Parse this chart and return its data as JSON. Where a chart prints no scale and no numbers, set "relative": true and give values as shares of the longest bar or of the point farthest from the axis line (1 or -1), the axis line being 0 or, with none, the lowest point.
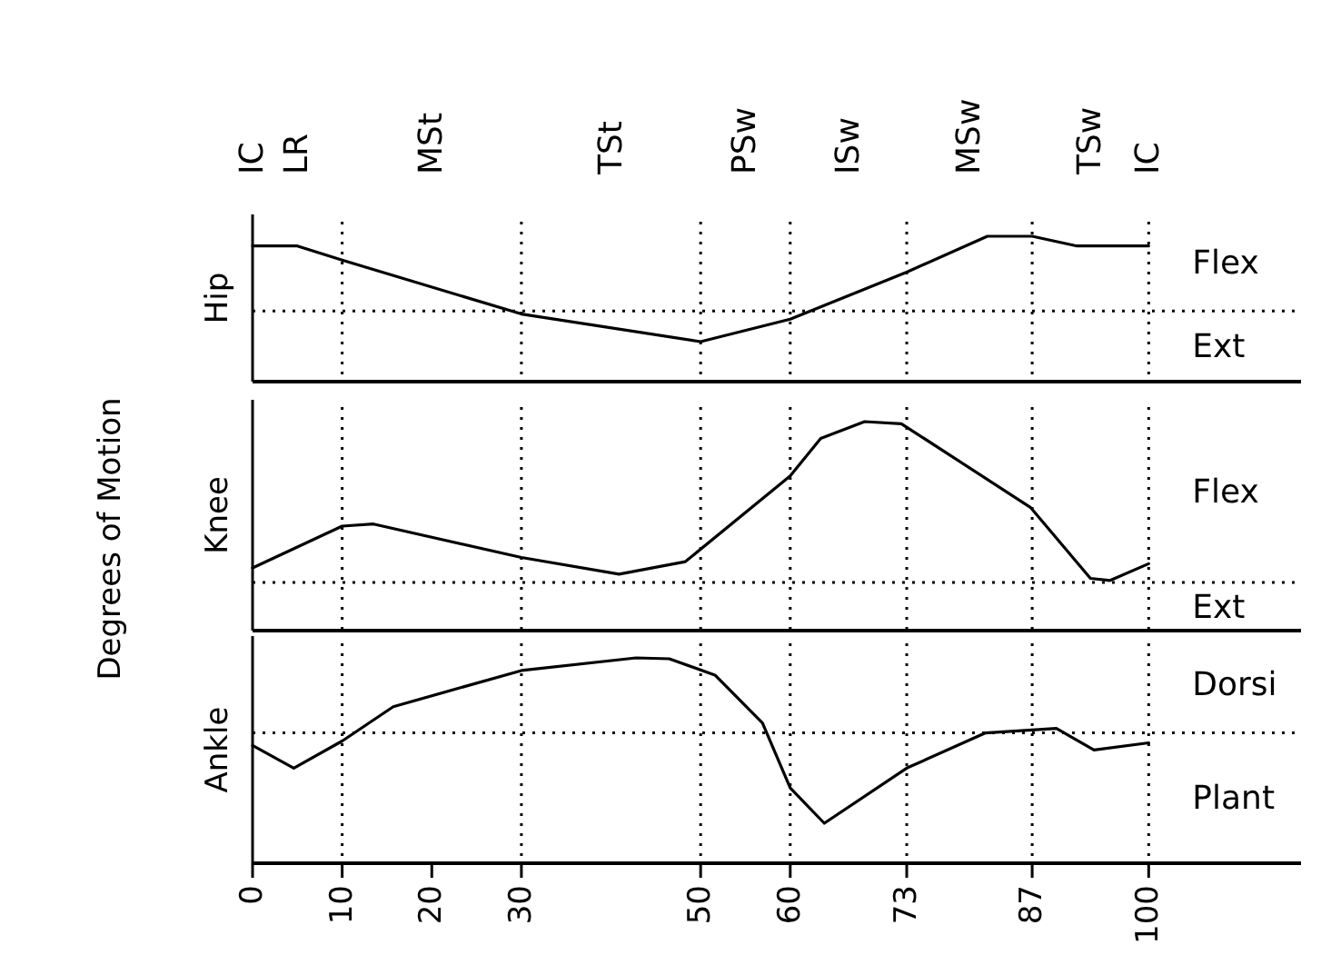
{
  "chart_data": [
    {
      "type": "line",
      "relative": true,
      "ylabel": "Hip",
      "xlim": [
        0,
        117
      ],
      "annotations": [
        "Flex",
        "Ext",
        "Degrees of Motion",
        "IC",
        "LR",
        "MSt",
        "TSt",
        "PSw",
        "ISw",
        "MSw",
        "TSw",
        "IC"
      ],
      "series": [
        {
          "color": "#000000",
          "x": [
            0,
            5,
            10,
            30,
            50,
            60,
            73,
            82,
            87,
            92,
            100
          ],
          "values": [
            0.87,
            0.87,
            0.68,
            -0.04,
            -0.41,
            -0.11,
            0.52,
            1,
            1,
            0.87,
            0.87
          ]
        }
      ],
      "ref_lines": [
        {
          "axis": "y",
          "value": 0,
          "line_style": "dotted"
        },
        {
          "axis": "x",
          "value": 10,
          "line_style": "dotted"
        },
        {
          "axis": "x",
          "value": 30,
          "line_style": "dotted"
        },
        {
          "axis": "x",
          "value": 50,
          "line_style": "dotted"
        },
        {
          "axis": "x",
          "value": 60,
          "line_style": "dotted"
        },
        {
          "axis": "x",
          "value": 73,
          "line_style": "dotted"
        },
        {
          "axis": "x",
          "value": 87,
          "line_style": "dotted"
        },
        {
          "axis": "x",
          "value": 100,
          "line_style": "dotted"
        }
      ]
    },
    {
      "type": "line",
      "relative": true,
      "ylabel": "Knee",
      "annotations": [
        "Flex",
        "Ext"
      ],
      "xlim": [
        0,
        117
      ],
      "series": [
        {
          "color": "#000000",
          "x": [
            0,
            10,
            13.5,
            30,
            40.9,
            48.3,
            60,
            63.4,
            68.3,
            72.4,
            86.8,
            93.5,
            95.7,
            100
          ],
          "values": [
            0.3,
            0.5,
            0.51,
            0.35,
            0.27,
            0.33,
            0.74,
            0.92,
            1,
            0.99,
            0.59,
            0.25,
            0.24,
            0.32
          ]
        }
      ],
      "ref_lines": [
        {
          "axis": "y",
          "value": 0.23,
          "line_style": "dotted"
        },
        {
          "axis": "x",
          "value": 10,
          "line_style": "dotted"
        },
        {
          "axis": "x",
          "value": 30,
          "line_style": "dotted"
        },
        {
          "axis": "x",
          "value": 50,
          "line_style": "dotted"
        },
        {
          "axis": "x",
          "value": 60,
          "line_style": "dotted"
        },
        {
          "axis": "x",
          "value": 73,
          "line_style": "dotted"
        },
        {
          "axis": "x",
          "value": 87,
          "line_style": "dotted"
        },
        {
          "axis": "x",
          "value": 100,
          "line_style": "dotted"
        }
      ]
    },
    {
      "type": "line",
      "relative": true,
      "ylabel": "Ankle",
      "annotations": [
        "Dorsi",
        "Plant"
      ],
      "xlim": [
        0,
        117
      ],
      "xticks": [
        0,
        10,
        20,
        30,
        50,
        60,
        73,
        87,
        100
      ],
      "series": [
        {
          "color": "#000000",
          "x": [
            0,
            4.6,
            10,
            15.7,
            30,
            42.8,
            46.5,
            51.6,
            56.9,
            60,
            63.8,
            73,
            81.8,
            89.7,
            93.9,
            100
          ],
          "values": [
            -0.14,
            -0.39,
            -0.09,
            0.29,
            0.69,
            0.83,
            0.82,
            0.64,
            0.11,
            -0.61,
            -1,
            -0.39,
            0,
            0.05,
            -0.19,
            -0.11
          ]
        }
      ],
      "ref_lines": [
        {
          "axis": "y",
          "value": 0,
          "line_style": "dotted"
        },
        {
          "axis": "x",
          "value": 10,
          "line_style": "dotted"
        },
        {
          "axis": "x",
          "value": 30,
          "line_style": "dotted"
        },
        {
          "axis": "x",
          "value": 50,
          "line_style": "dotted"
        },
        {
          "axis": "x",
          "value": 60,
          "line_style": "dotted"
        },
        {
          "axis": "x",
          "value": 73,
          "line_style": "dotted"
        },
        {
          "axis": "x",
          "value": 87,
          "line_style": "dotted"
        },
        {
          "axis": "x",
          "value": 100,
          "line_style": "dotted"
        }
      ]
    }
  ]
}
